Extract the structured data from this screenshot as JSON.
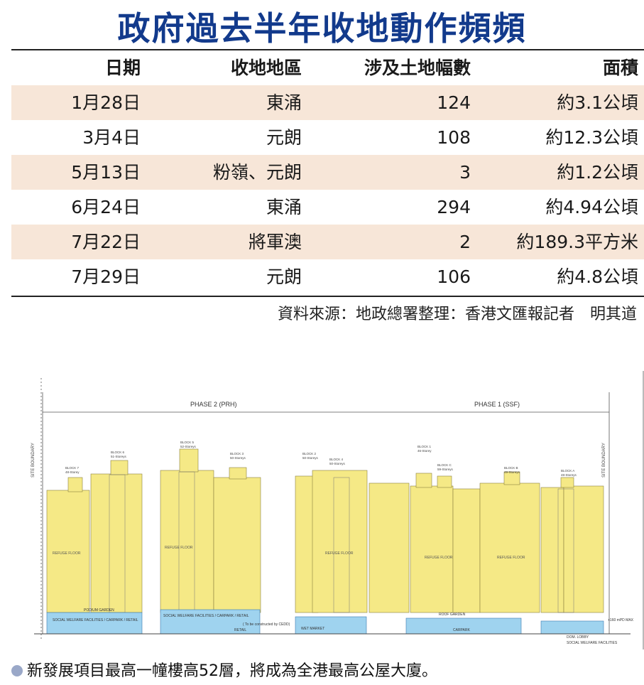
{
  "title": "政府過去半年收地動作頻頻",
  "table": {
    "headers": [
      "日期",
      "收地地區",
      "涉及土地幅數",
      "面積"
    ],
    "rows": [
      [
        "1月28日",
        "東涌",
        "124",
        "約3.1公頃"
      ],
      [
        "3月4日",
        "元朗",
        "108",
        "約12.3公頃"
      ],
      [
        "5月13日",
        "粉嶺、元朗",
        "3",
        "約1.2公頃"
      ],
      [
        "6月24日",
        "東涌",
        "294",
        "約4.94公頃"
      ],
      [
        "7月22日",
        "將軍澳",
        "2",
        "約189.3平方米"
      ],
      [
        "7月29日",
        "元朗",
        "106",
        "約4.8公頃"
      ]
    ]
  },
  "source": "資料來源：地政總署整理：香港文匯報記者　明其道",
  "drawing": {
    "phase2": "PHASE 2 (PRH)",
    "phase1": "PHASE 1 (SSF)",
    "site_boundary": "SITE BOUNDARY",
    "blocks": [
      {
        "name": "BLOCK 7",
        "storeys": "48-Storey"
      },
      {
        "name": "BLOCK 6",
        "storeys": "51-Storeys"
      },
      {
        "name": "BLOCK 5",
        "storeys": "52-Storeys"
      },
      {
        "name": "BLOCK 3",
        "storeys": "50-Storeys"
      },
      {
        "name": "BLOCK 2",
        "storeys": "50-Storeys"
      },
      {
        "name": "BLOCK 4",
        "storeys": "50-Storeys"
      },
      {
        "name": "BLOCK 1",
        "storeys": "46-Storey"
      },
      {
        "name": "BLOCK C",
        "storeys": "59-Storeys"
      },
      {
        "name": "BLOCK B",
        "storeys": "49-Storeys"
      },
      {
        "name": "BLOCK A",
        "storeys": "48-Storeys"
      }
    ],
    "refuge_floor": "REFUGE FLOOR",
    "podium_garden": "PODIUM GARDEN",
    "roof_garden": "ROOF GARDEN",
    "carpark": "CARPARK",
    "retail": "RETAIL",
    "wet_market": "WET MARKET",
    "social": "SOCIAL WELFARE FACILITIES / CARPARK / RETAIL",
    "ceded": "( To be constructed by CEDD)",
    "lobby": "DOM. LOBBY",
    "social2": "SOCIAL WELFARE FACILITIES",
    "mpd": "+160 mPD MAX"
  },
  "caption": "新發展項目最高一幢樓高52層，將成為全港最高公屋大廈。"
}
